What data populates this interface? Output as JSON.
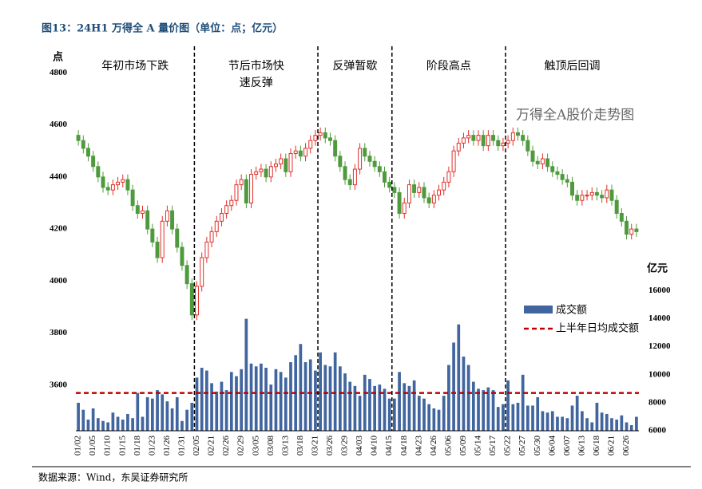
{
  "chart_data": {
    "type": "candlestick",
    "title": "图13：24H1 万得全 A 量价图（单位：点；亿元）",
    "y_label": "点",
    "y2_label": "亿元",
    "annotation": "万得全A股价走势图",
    "source": "数据来源：Wind，东吴证券研究所",
    "ylim": [
      3425,
      4850
    ],
    "yticks": [
      3600,
      3800,
      4000,
      4200,
      4400,
      4600,
      4800
    ],
    "y2lim": [
      6000,
      32500
    ],
    "y2ticks": [
      6000,
      8000,
      10000,
      12000,
      14000,
      16000
    ],
    "up_color": "#e0302a",
    "down_color": "#4e9a3c",
    "phases": [
      [
        "年初市场下跌"
      ],
      [
        "节后市场快",
        "速反弹"
      ],
      [
        "反弹暂歇"
      ],
      [
        "阶段高点"
      ],
      [
        "触顶后回调"
      ]
    ],
    "dividers": [
      24,
      49,
      64,
      87
    ],
    "categories": [
      "01/02",
      null,
      null,
      "01/05",
      null,
      null,
      "01/10",
      null,
      null,
      "01/15",
      null,
      null,
      "01/18",
      null,
      null,
      "01/23",
      null,
      null,
      "01/26",
      null,
      null,
      "01/31",
      null,
      null,
      "02/05",
      null,
      null,
      "02/21",
      null,
      null,
      "02/26",
      null,
      null,
      "02/29",
      null,
      null,
      "03/05",
      null,
      null,
      "03/08",
      null,
      null,
      "03/13",
      null,
      null,
      "03/18",
      null,
      null,
      "03/21",
      null,
      null,
      "03/26",
      null,
      null,
      "03/29",
      null,
      null,
      "04/03",
      null,
      null,
      "04/10",
      null,
      null,
      "04/15",
      null,
      null,
      "04/18",
      null,
      null,
      "04/23",
      null,
      null,
      "04/26",
      null,
      null,
      "05/06",
      null,
      null,
      "05/09",
      null,
      null,
      "05/14",
      null,
      null,
      "05/17",
      null,
      null,
      "05/22",
      null,
      null,
      "05/27",
      null,
      null,
      "05/30",
      null,
      null,
      "06/04",
      null,
      null,
      "06/07",
      null,
      null,
      "06/13",
      null,
      null,
      "06/18",
      null,
      null,
      "06/21",
      null,
      null,
      "06/26",
      null,
      null
    ],
    "price": {
      "open": [
        4560,
        4540,
        4510,
        4480,
        4440,
        4400,
        4360,
        4350,
        4370,
        4380,
        4390,
        4350,
        4290,
        4260,
        4270,
        4200,
        4150,
        4090,
        4230,
        4270,
        4200,
        4130,
        4060,
        3990,
        3870,
        3980,
        4090,
        4150,
        4190,
        4230,
        4260,
        4290,
        4310,
        4370,
        4390,
        4300,
        4410,
        4420,
        4430,
        4400,
        4440,
        4450,
        4470,
        4420,
        4490,
        4500,
        4480,
        4510,
        4540,
        4560,
        4570,
        4550,
        4540,
        4480,
        4440,
        4390,
        4370,
        4430,
        4510,
        4480,
        4460,
        4440,
        4420,
        4380,
        4360,
        4340,
        4260,
        4300,
        4370,
        4340,
        4360,
        4320,
        4300,
        4330,
        4350,
        4380,
        4420,
        4500,
        4530,
        4550,
        4560,
        4540,
        4560,
        4520,
        4560,
        4540,
        4520,
        4530,
        4540,
        4570,
        4560,
        4540,
        4500,
        4460,
        4450,
        4470,
        4440,
        4420,
        4410,
        4390,
        4380,
        4330,
        4310,
        4330,
        4330,
        4340,
        4330,
        4320,
        4350,
        4310,
        4260,
        4230,
        4180,
        4200
      ],
      "close": [
        4540,
        4510,
        4480,
        4440,
        4400,
        4360,
        4350,
        4370,
        4380,
        4390,
        4350,
        4290,
        4260,
        4270,
        4200,
        4150,
        4090,
        4230,
        4270,
        4200,
        4130,
        4060,
        3990,
        3870,
        3980,
        4090,
        4150,
        4190,
        4230,
        4260,
        4290,
        4310,
        4370,
        4390,
        4300,
        4410,
        4420,
        4430,
        4400,
        4440,
        4450,
        4470,
        4420,
        4490,
        4500,
        4480,
        4510,
        4540,
        4560,
        4570,
        4550,
        4540,
        4480,
        4440,
        4390,
        4370,
        4430,
        4510,
        4480,
        4460,
        4440,
        4420,
        4380,
        4360,
        4340,
        4260,
        4300,
        4370,
        4340,
        4360,
        4320,
        4300,
        4330,
        4350,
        4380,
        4420,
        4500,
        4530,
        4550,
        4560,
        4540,
        4560,
        4520,
        4560,
        4540,
        4520,
        4530,
        4540,
        4570,
        4560,
        4540,
        4500,
        4460,
        4450,
        4470,
        4440,
        4420,
        4410,
        4390,
        4380,
        4330,
        4310,
        4330,
        4330,
        4340,
        4330,
        4320,
        4350,
        4310,
        4260,
        4230,
        4180,
        4200,
        4190
      ],
      "high": [
        4580,
        4560,
        4530,
        4500,
        4460,
        4420,
        4380,
        4390,
        4400,
        4410,
        4410,
        4370,
        4310,
        4290,
        4290,
        4220,
        4170,
        4250,
        4290,
        4290,
        4220,
        4150,
        4080,
        4010,
        4000,
        4110,
        4170,
        4210,
        4250,
        4280,
        4310,
        4330,
        4390,
        4410,
        4410,
        4430,
        4440,
        4450,
        4450,
        4460,
        4470,
        4490,
        4490,
        4510,
        4520,
        4520,
        4530,
        4560,
        4580,
        4590,
        4590,
        4570,
        4560,
        4500,
        4460,
        4410,
        4450,
        4530,
        4530,
        4500,
        4480,
        4460,
        4440,
        4400,
        4380,
        4360,
        4320,
        4390,
        4390,
        4380,
        4380,
        4340,
        4350,
        4370,
        4400,
        4440,
        4520,
        4550,
        4570,
        4580,
        4580,
        4580,
        4580,
        4580,
        4580,
        4560,
        4550,
        4560,
        4590,
        4590,
        4580,
        4560,
        4520,
        4480,
        4490,
        4490,
        4460,
        4440,
        4430,
        4410,
        4400,
        4350,
        4350,
        4350,
        4360,
        4360,
        4350,
        4370,
        4370,
        4330,
        4280,
        4250,
        4220,
        4220
      ],
      "low": [
        4520,
        4490,
        4460,
        4420,
        4380,
        4340,
        4330,
        4330,
        4350,
        4360,
        4330,
        4270,
        4240,
        4240,
        4180,
        4130,
        4070,
        4070,
        4210,
        4180,
        4110,
        4040,
        3970,
        3850,
        3850,
        3960,
        4070,
        4130,
        4170,
        4210,
        4240,
        4270,
        4290,
        4350,
        4280,
        4280,
        4390,
        4400,
        4380,
        4380,
        4420,
        4430,
        4400,
        4400,
        4470,
        4460,
        4460,
        4490,
        4520,
        4540,
        4530,
        4520,
        4460,
        4420,
        4370,
        4350,
        4350,
        4410,
        4460,
        4440,
        4420,
        4400,
        4360,
        4340,
        4320,
        4240,
        4240,
        4280,
        4320,
        4320,
        4300,
        4280,
        4280,
        4310,
        4330,
        4360,
        4400,
        4480,
        4510,
        4530,
        4520,
        4520,
        4500,
        4500,
        4520,
        4500,
        4500,
        4510,
        4520,
        4540,
        4520,
        4480,
        4440,
        4430,
        4430,
        4420,
        4400,
        4390,
        4370,
        4360,
        4310,
        4290,
        4290,
        4310,
        4310,
        4310,
        4300,
        4300,
        4290,
        4240,
        4210,
        4160,
        4160,
        4170
      ]
    },
    "series": [
      {
        "name": "成交额",
        "color": "#41659e",
        "axis": "y2",
        "values": [
          8000,
          7500,
          6800,
          7600,
          6900,
          6700,
          6600,
          7300,
          7000,
          6800,
          7200,
          6900,
          8700,
          7000,
          8400,
          8300,
          8900,
          8600,
          8100,
          7600,
          8400,
          6700,
          7500,
          8000,
          9800,
          10500,
          10300,
          9400,
          8800,
          9500,
          8900,
          10200,
          9900,
          10400,
          14000,
          10800,
          10600,
          10800,
          10500,
          9300,
          10400,
          10200,
          9800,
          10900,
          11400,
          12200,
          10900,
          11100,
          10300,
          11600,
          10700,
          10600,
          11600,
          10600,
          10100,
          9500,
          9200,
          8500,
          10000,
          9700,
          9200,
          9300,
          9000,
          8300,
          8300,
          10200,
          9400,
          9200,
          9600,
          8500,
          8300,
          7900,
          7600,
          7500,
          8500,
          10700,
          12300,
          13600,
          11300,
          10700,
          9500,
          9000,
          8900,
          9100,
          8900,
          7700,
          7900,
          9600,
          7900,
          8000,
          10000,
          7800,
          7800,
          8400,
          7400,
          7300,
          7400,
          7000,
          7000,
          6900,
          7800,
          8500,
          7400,
          6900,
          6600,
          8000,
          7300,
          7200,
          6900,
          6800,
          7100,
          6600,
          6400,
          7000
        ]
      }
    ],
    "average": {
      "name": "上半年日均成交额",
      "value": 8700,
      "color": "#c00000",
      "axis": "y2"
    }
  }
}
